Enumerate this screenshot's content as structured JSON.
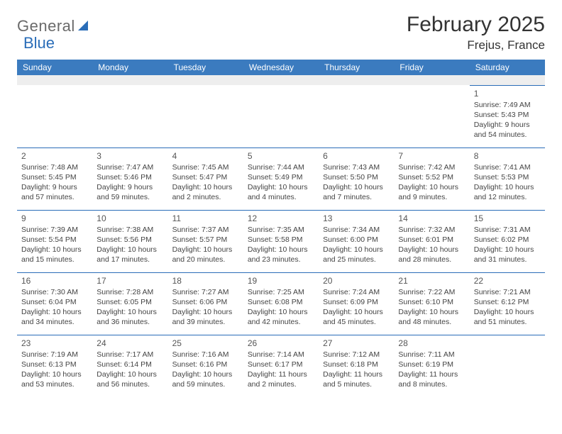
{
  "brand": {
    "name_gray": "General",
    "name_blue": "Blue"
  },
  "title": "February 2025",
  "location": "Frejus, France",
  "colors": {
    "header_bg": "#3b7bbf",
    "header_text": "#ffffff",
    "border": "#2a6db8",
    "body_text": "#444444",
    "spacer_bg": "#eeeeee",
    "logo_gray": "#6a6a6a",
    "logo_blue": "#2a6db8"
  },
  "day_names": [
    "Sunday",
    "Monday",
    "Tuesday",
    "Wednesday",
    "Thursday",
    "Friday",
    "Saturday"
  ],
  "weeks": [
    [
      null,
      null,
      null,
      null,
      null,
      null,
      {
        "n": "1",
        "sunrise": "7:49 AM",
        "sunset": "5:43 PM",
        "daylight": "9 hours and 54 minutes."
      }
    ],
    [
      {
        "n": "2",
        "sunrise": "7:48 AM",
        "sunset": "5:45 PM",
        "daylight": "9 hours and 57 minutes."
      },
      {
        "n": "3",
        "sunrise": "7:47 AM",
        "sunset": "5:46 PM",
        "daylight": "9 hours and 59 minutes."
      },
      {
        "n": "4",
        "sunrise": "7:45 AM",
        "sunset": "5:47 PM",
        "daylight": "10 hours and 2 minutes."
      },
      {
        "n": "5",
        "sunrise": "7:44 AM",
        "sunset": "5:49 PM",
        "daylight": "10 hours and 4 minutes."
      },
      {
        "n": "6",
        "sunrise": "7:43 AM",
        "sunset": "5:50 PM",
        "daylight": "10 hours and 7 minutes."
      },
      {
        "n": "7",
        "sunrise": "7:42 AM",
        "sunset": "5:52 PM",
        "daylight": "10 hours and 9 minutes."
      },
      {
        "n": "8",
        "sunrise": "7:41 AM",
        "sunset": "5:53 PM",
        "daylight": "10 hours and 12 minutes."
      }
    ],
    [
      {
        "n": "9",
        "sunrise": "7:39 AM",
        "sunset": "5:54 PM",
        "daylight": "10 hours and 15 minutes."
      },
      {
        "n": "10",
        "sunrise": "7:38 AM",
        "sunset": "5:56 PM",
        "daylight": "10 hours and 17 minutes."
      },
      {
        "n": "11",
        "sunrise": "7:37 AM",
        "sunset": "5:57 PM",
        "daylight": "10 hours and 20 minutes."
      },
      {
        "n": "12",
        "sunrise": "7:35 AM",
        "sunset": "5:58 PM",
        "daylight": "10 hours and 23 minutes."
      },
      {
        "n": "13",
        "sunrise": "7:34 AM",
        "sunset": "6:00 PM",
        "daylight": "10 hours and 25 minutes."
      },
      {
        "n": "14",
        "sunrise": "7:32 AM",
        "sunset": "6:01 PM",
        "daylight": "10 hours and 28 minutes."
      },
      {
        "n": "15",
        "sunrise": "7:31 AM",
        "sunset": "6:02 PM",
        "daylight": "10 hours and 31 minutes."
      }
    ],
    [
      {
        "n": "16",
        "sunrise": "7:30 AM",
        "sunset": "6:04 PM",
        "daylight": "10 hours and 34 minutes."
      },
      {
        "n": "17",
        "sunrise": "7:28 AM",
        "sunset": "6:05 PM",
        "daylight": "10 hours and 36 minutes."
      },
      {
        "n": "18",
        "sunrise": "7:27 AM",
        "sunset": "6:06 PM",
        "daylight": "10 hours and 39 minutes."
      },
      {
        "n": "19",
        "sunrise": "7:25 AM",
        "sunset": "6:08 PM",
        "daylight": "10 hours and 42 minutes."
      },
      {
        "n": "20",
        "sunrise": "7:24 AM",
        "sunset": "6:09 PM",
        "daylight": "10 hours and 45 minutes."
      },
      {
        "n": "21",
        "sunrise": "7:22 AM",
        "sunset": "6:10 PM",
        "daylight": "10 hours and 48 minutes."
      },
      {
        "n": "22",
        "sunrise": "7:21 AM",
        "sunset": "6:12 PM",
        "daylight": "10 hours and 51 minutes."
      }
    ],
    [
      {
        "n": "23",
        "sunrise": "7:19 AM",
        "sunset": "6:13 PM",
        "daylight": "10 hours and 53 minutes."
      },
      {
        "n": "24",
        "sunrise": "7:17 AM",
        "sunset": "6:14 PM",
        "daylight": "10 hours and 56 minutes."
      },
      {
        "n": "25",
        "sunrise": "7:16 AM",
        "sunset": "6:16 PM",
        "daylight": "10 hours and 59 minutes."
      },
      {
        "n": "26",
        "sunrise": "7:14 AM",
        "sunset": "6:17 PM",
        "daylight": "11 hours and 2 minutes."
      },
      {
        "n": "27",
        "sunrise": "7:12 AM",
        "sunset": "6:18 PM",
        "daylight": "11 hours and 5 minutes."
      },
      {
        "n": "28",
        "sunrise": "7:11 AM",
        "sunset": "6:19 PM",
        "daylight": "11 hours and 8 minutes."
      },
      null
    ]
  ],
  "labels": {
    "sunrise": "Sunrise:",
    "sunset": "Sunset:",
    "daylight": "Daylight:"
  }
}
